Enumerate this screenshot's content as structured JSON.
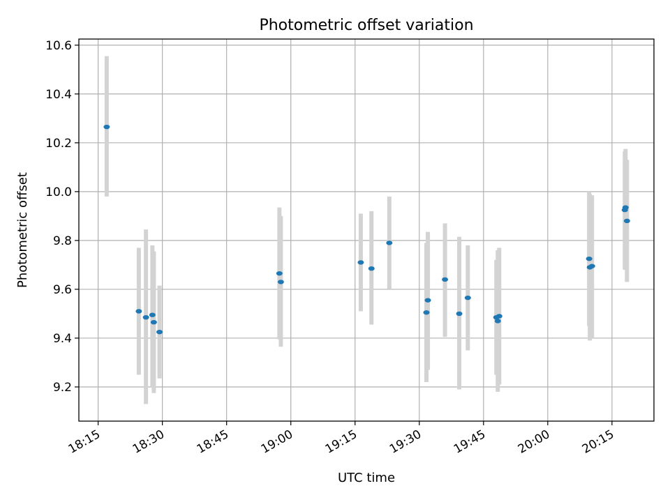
{
  "chart_data": {
    "type": "scatter",
    "title": "Photometric offset variation",
    "xlabel": "UTC time",
    "ylabel": "Photometric offset",
    "x_ticks": [
      "18:15",
      "18:30",
      "18:45",
      "19:00",
      "19:15",
      "19:30",
      "19:45",
      "20:00",
      "20:15"
    ],
    "x_tick_minutes": [
      1095,
      1110,
      1125,
      1140,
      1155,
      1170,
      1185,
      1200,
      1215
    ],
    "xlim_minutes": [
      1090.5,
      1224.8
    ],
    "ylim": [
      9.06,
      10.625
    ],
    "y_ticks": [
      "9.2",
      "9.4",
      "9.6",
      "9.8",
      "10.0",
      "10.2",
      "10.4",
      "10.6"
    ],
    "grid": true,
    "colors": {
      "marker": "#1f77b4",
      "errorbar": "#d3d3d3"
    },
    "points": [
      {
        "x": "18:17",
        "y": 10.265,
        "yerr_low": 9.98,
        "yerr_high": 10.555
      },
      {
        "x": "18:24:30",
        "y": 9.51,
        "yerr_low": 9.25,
        "yerr_high": 9.77
      },
      {
        "x": "18:26:10",
        "y": 9.485,
        "yerr_low": 9.13,
        "yerr_high": 9.845
      },
      {
        "x": "18:27:40",
        "y": 9.495,
        "yerr_low": 9.2,
        "yerr_high": 9.78
      },
      {
        "x": "18:28",
        "y": 9.465,
        "yerr_low": 9.175,
        "yerr_high": 9.755
      },
      {
        "x": "18:29:20",
        "y": 9.425,
        "yerr_low": 9.235,
        "yerr_high": 9.615
      },
      {
        "x": "18:57:20",
        "y": 9.665,
        "yerr_low": 9.395,
        "yerr_high": 9.935
      },
      {
        "x": "18:57:40",
        "y": 9.63,
        "yerr_low": 9.365,
        "yerr_high": 9.9
      },
      {
        "x": "19:16:20",
        "y": 9.71,
        "yerr_low": 9.51,
        "yerr_high": 9.91
      },
      {
        "x": "19:18:50",
        "y": 9.685,
        "yerr_low": 9.455,
        "yerr_high": 9.92
      },
      {
        "x": "19:23",
        "y": 9.79,
        "yerr_low": 9.6,
        "yerr_high": 9.98
      },
      {
        "x": "19:31:40",
        "y": 9.505,
        "yerr_low": 9.22,
        "yerr_high": 9.79
      },
      {
        "x": "19:32",
        "y": 9.555,
        "yerr_low": 9.27,
        "yerr_high": 9.835
      },
      {
        "x": "19:36",
        "y": 9.64,
        "yerr_low": 9.405,
        "yerr_high": 9.87
      },
      {
        "x": "19:39:20",
        "y": 9.5,
        "yerr_low": 9.19,
        "yerr_high": 9.815
      },
      {
        "x": "19:41:20",
        "y": 9.565,
        "yerr_low": 9.35,
        "yerr_high": 9.78
      },
      {
        "x": "19:48",
        "y": 9.485,
        "yerr_low": 9.25,
        "yerr_high": 9.72
      },
      {
        "x": "19:48:20",
        "y": 9.47,
        "yerr_low": 9.18,
        "yerr_high": 9.76
      },
      {
        "x": "19:48:40",
        "y": 9.49,
        "yerr_low": 9.21,
        "yerr_high": 9.77
      },
      {
        "x": "20:09:40",
        "y": 9.725,
        "yerr_low": 9.45,
        "yerr_high": 10.0
      },
      {
        "x": "20:09:50",
        "y": 9.69,
        "yerr_low": 9.39,
        "yerr_high": 9.99
      },
      {
        "x": "20:10:20",
        "y": 9.695,
        "yerr_low": 9.4,
        "yerr_high": 9.985
      },
      {
        "x": "20:18",
        "y": 9.925,
        "yerr_low": 9.68,
        "yerr_high": 10.165
      },
      {
        "x": "20:18:10",
        "y": 9.935,
        "yerr_low": 9.7,
        "yerr_high": 10.175
      },
      {
        "x": "20:18:30",
        "y": 9.88,
        "yerr_low": 9.63,
        "yerr_high": 10.13
      }
    ]
  }
}
